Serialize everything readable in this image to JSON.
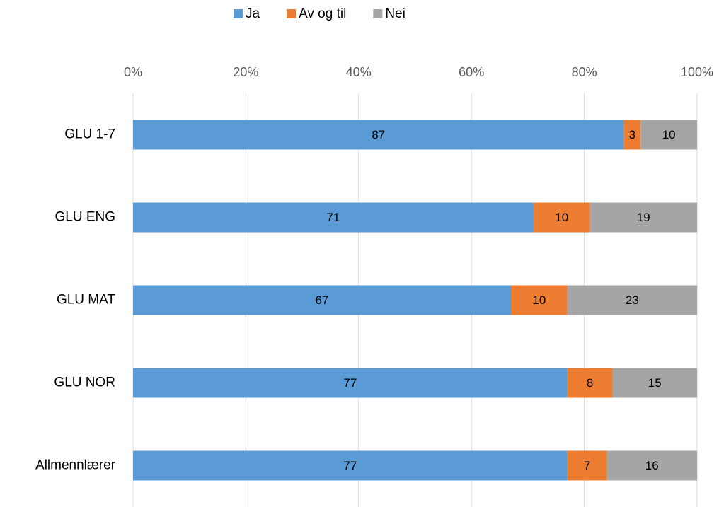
{
  "chart_data": {
    "type": "bar",
    "orientation": "horizontal",
    "stacked": true,
    "categories": [
      "GLU 1-7",
      "GLU ENG",
      "GLU MAT",
      "GLU NOR",
      "Allmennlærer"
    ],
    "series": [
      {
        "name": "Ja",
        "color": "#5b9bd5",
        "values": [
          87,
          71,
          67,
          77,
          77
        ]
      },
      {
        "name": "Av og til",
        "color": "#ed7d31",
        "values": [
          3,
          10,
          10,
          8,
          7
        ]
      },
      {
        "name": "Nei",
        "color": "#a5a5a5",
        "values": [
          10,
          19,
          23,
          15,
          16
        ]
      }
    ],
    "xlim": [
      0,
      100
    ],
    "xticks": [
      {
        "value": 0,
        "label": "0%"
      },
      {
        "value": 20,
        "label": "20%"
      },
      {
        "value": 40,
        "label": "40%"
      },
      {
        "value": 60,
        "label": "60%"
      },
      {
        "value": 80,
        "label": "80%"
      },
      {
        "value": 100,
        "label": "100%"
      }
    ],
    "grid": true,
    "legend": "top"
  }
}
